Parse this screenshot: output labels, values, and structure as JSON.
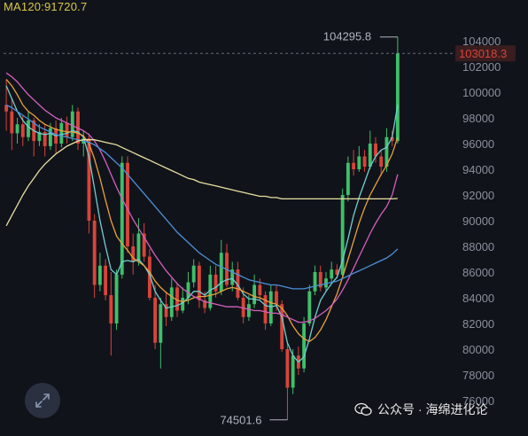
{
  "ma120_label": "MA120:91720.7",
  "watermark_text": "公众号 · 海绵进化论",
  "icons": {
    "expand": "expand-icon",
    "watermark": "wechat-icon"
  },
  "colors": {
    "background": "#11131a",
    "up": "#3fbf6a",
    "down": "#d8443a",
    "ma_yellow": "#d9c84a",
    "ma_cyan": "#6fd0d0",
    "ma_orange": "#e6a23c",
    "ma_magenta": "#d460c0",
    "ma_blue": "#4a90d9",
    "ma_pale_yellow": "#e8e0a0",
    "last_price": "#d8443a"
  },
  "chart_data": {
    "type": "candlestick",
    "ylim": [
      75000,
      106000
    ],
    "y_ticks": [
      76000,
      78000,
      80000,
      82000,
      84000,
      86000,
      88000,
      90000,
      92000,
      94000,
      96000,
      98000,
      100000,
      102000,
      104000
    ],
    "tick_labels": [
      "76000",
      "78000",
      "80000",
      "82000",
      "84000",
      "86000",
      "88000",
      "90000",
      "92000",
      "94000",
      "96000",
      "98000",
      "100000",
      "102000",
      "104000"
    ],
    "high_label": "104295.8",
    "low_label": "74501.6",
    "last_price": 103018.3,
    "last_price_label": "103018.3",
    "ma120_value": 91720.7,
    "candles": [
      [
        99000,
        98500,
        101000,
        97000
      ],
      [
        98500,
        96800,
        99500,
        95500
      ],
      [
        96800,
        97500,
        98000,
        96000
      ],
      [
        97500,
        96500,
        98200,
        95800
      ],
      [
        96500,
        97800,
        98500,
        96200
      ],
      [
        97800,
        96200,
        98000,
        95000
      ],
      [
        96200,
        96900,
        97500,
        95800
      ],
      [
        96900,
        95800,
        97500,
        95000
      ],
      [
        95800,
        97200,
        97600,
        95500
      ],
      [
        97200,
        96000,
        97800,
        95200
      ],
      [
        96000,
        97600,
        98000,
        95700
      ],
      [
        97600,
        96500,
        98100,
        96000
      ],
      [
        96500,
        98500,
        99000,
        96200
      ],
      [
        98500,
        96000,
        98800,
        95500
      ],
      [
        96000,
        96400,
        97000,
        95000
      ],
      [
        96400,
        90000,
        96800,
        89000
      ],
      [
        90000,
        85000,
        90500,
        84000
      ],
      [
        85000,
        86500,
        87500,
        84500
      ],
      [
        86500,
        84200,
        87000,
        83800
      ],
      [
        84200,
        82000,
        86000,
        79500
      ],
      [
        82000,
        85800,
        86200,
        81500
      ],
      [
        85800,
        94500,
        95000,
        85500
      ],
      [
        94500,
        88000,
        95000,
        87500
      ],
      [
        88000,
        86800,
        89000,
        85800
      ],
      [
        86800,
        89000,
        90200,
        86500
      ],
      [
        89000,
        87200,
        89800,
        86800
      ],
      [
        87200,
        84000,
        87800,
        83800
      ],
      [
        84000,
        80500,
        85000,
        80000
      ],
      [
        80500,
        83500,
        84000,
        78500
      ],
      [
        83500,
        82500,
        84500,
        81800
      ],
      [
        82500,
        84800,
        85500,
        82200
      ],
      [
        84800,
        83000,
        85200,
        82500
      ],
      [
        83000,
        84000,
        84800,
        82800
      ],
      [
        84000,
        85200,
        86000,
        83500
      ],
      [
        85200,
        86500,
        87000,
        84800
      ],
      [
        86500,
        83800,
        86800,
        83200
      ],
      [
        83800,
        83200,
        84500,
        82800
      ],
      [
        83200,
        85800,
        86500,
        83000
      ],
      [
        85800,
        84500,
        86500,
        84000
      ],
      [
        84500,
        87500,
        88500,
        84200
      ],
      [
        87500,
        85000,
        88200,
        84800
      ],
      [
        85000,
        86200,
        86800,
        84500
      ],
      [
        86200,
        84000,
        86800,
        83800
      ],
      [
        84000,
        82500,
        84800,
        82000
      ],
      [
        82500,
        83500,
        84200,
        82200
      ],
      [
        83500,
        85000,
        85800,
        83200
      ],
      [
        85000,
        84200,
        85500,
        83800
      ],
      [
        84200,
        82000,
        84500,
        81500
      ],
      [
        82000,
        84500,
        85000,
        81800
      ],
      [
        84500,
        83500,
        85000,
        83000
      ],
      [
        83500,
        80000,
        83800,
        79800
      ],
      [
        80000,
        77000,
        80500,
        74501.6
      ],
      [
        77000,
        79500,
        80000,
        76500
      ],
      [
        79500,
        78500,
        80200,
        78000
      ],
      [
        78500,
        82000,
        82500,
        78200
      ],
      [
        82000,
        84500,
        85000,
        81800
      ],
      [
        84500,
        86000,
        86500,
        84200
      ],
      [
        86000,
        84800,
        86500,
        84500
      ],
      [
        84800,
        85500,
        86000,
        84500
      ],
      [
        85500,
        86200,
        86800,
        85200
      ],
      [
        86200,
        85800,
        86600,
        85500
      ],
      [
        85800,
        92000,
        92500,
        85600
      ],
      [
        92000,
        94500,
        95000,
        91500
      ],
      [
        94500,
        94000,
        95500,
        93500
      ],
      [
        94000,
        95000,
        95800,
        93800
      ],
      [
        95000,
        94200,
        95500,
        93800
      ],
      [
        94200,
        96000,
        97000,
        94000
      ],
      [
        96000,
        95000,
        96500,
        94500
      ],
      [
        95000,
        94200,
        95500,
        93500
      ],
      [
        94200,
        96500,
        97200,
        93800
      ],
      [
        96500,
        96200,
        97000,
        95800
      ],
      [
        96200,
        103018.3,
        104295.8,
        96000
      ]
    ],
    "series": [
      {
        "values": [
          100500,
          99500,
          98500,
          97800,
          97300,
          97000,
          96800,
          96700,
          96800,
          96600,
          96700,
          96800,
          97000,
          96900,
          96500,
          95000,
          92500,
          90000,
          88000,
          86200,
          85800,
          86800,
          86900,
          86800,
          87000,
          86500,
          85800,
          84500,
          83800,
          83200,
          83300,
          83400,
          83600,
          84000,
          84500,
          84500,
          84200,
          84600,
          84800,
          85200,
          85400,
          85500,
          85000,
          84300,
          83900,
          83900,
          83800,
          83400,
          83300,
          83400,
          82500,
          80500,
          79500,
          79000,
          79400,
          80800,
          82500,
          83800,
          84500,
          85100,
          85600,
          86900,
          88600,
          90400,
          91800,
          93000,
          94200,
          95000,
          95500,
          95700,
          96500,
          99000
        ]
      },
      {
        "values": [
          101000,
          100500,
          99800,
          99000,
          98500,
          98200,
          97800,
          97500,
          97300,
          97100,
          97000,
          96900,
          96900,
          96800,
          96600,
          96000,
          94800,
          93300,
          91600,
          90000,
          88800,
          88200,
          87700,
          87100,
          86800,
          86500,
          86000,
          85300,
          84800,
          84400,
          84100,
          83800,
          83700,
          83800,
          84000,
          84100,
          84100,
          84200,
          84300,
          84500,
          84700,
          84800,
          84700,
          84500,
          84300,
          84100,
          84000,
          83800,
          83600,
          83500,
          83200,
          82600,
          81800,
          81200,
          80800,
          80600,
          80900,
          81500,
          82300,
          83300,
          84300,
          85600,
          87000,
          88400,
          89800,
          91000,
          92000,
          92800,
          93600,
          94300,
          95200,
          96500
        ]
      },
      {
        "values": [
          101500,
          101200,
          100800,
          100300,
          99800,
          99400,
          99000,
          98600,
          98300,
          98000,
          97800,
          97600,
          97400,
          97200,
          97000,
          96700,
          96200,
          95500,
          94600,
          93600,
          92600,
          91700,
          90900,
          90100,
          89400,
          88700,
          88000,
          87300,
          86700,
          86100,
          85600,
          85100,
          84700,
          84400,
          84100,
          83900,
          83700,
          83600,
          83500,
          83400,
          83300,
          83300,
          83300,
          83200,
          83100,
          83000,
          83000,
          82900,
          82800,
          82800,
          82700,
          82500,
          82300,
          82100,
          82100,
          82200,
          82400,
          82700,
          83000,
          83400,
          83900,
          84600,
          85400,
          86300,
          87200,
          88100,
          89000,
          89800,
          90500,
          91100,
          92000,
          93600
        ]
      },
      {
        "values": [
          99000,
          98800,
          98500,
          98200,
          97900,
          97600,
          97300,
          97100,
          96900,
          96700,
          96600,
          96500,
          96400,
          96300,
          96200,
          96100,
          95900,
          95600,
          95300,
          94900,
          94500,
          94100,
          93600,
          93100,
          92600,
          92100,
          91600,
          91100,
          90600,
          90100,
          89600,
          89100,
          88700,
          88300,
          87900,
          87500,
          87200,
          86900,
          86600,
          86400,
          86200,
          86000,
          85800,
          85600,
          85400,
          85300,
          85200,
          85100,
          85000,
          85000,
          84900,
          84800,
          84700,
          84700,
          84700,
          84800,
          84900,
          85000,
          85100,
          85200,
          85300,
          85500,
          85700,
          85900,
          86100,
          86300,
          86500,
          86700,
          86900,
          87100,
          87400,
          87800
        ]
      },
      {
        "values": [
          89600,
          90400,
          91200,
          92000,
          92700,
          93300,
          93900,
          94400,
          94800,
          95200,
          95500,
          95800,
          96000,
          96200,
          96300,
          96300,
          96300,
          96200,
          96100,
          96000,
          95900,
          95700,
          95500,
          95300,
          95100,
          94900,
          94700,
          94500,
          94300,
          94100,
          93900,
          93700,
          93500,
          93300,
          93200,
          93000,
          92900,
          92800,
          92700,
          92600,
          92500,
          92400,
          92300,
          92200,
          92100,
          92000,
          91900,
          91900,
          91800,
          91800,
          91700,
          91700,
          91700,
          91700,
          91700,
          91700,
          91700,
          91700,
          91700,
          91700,
          91700,
          91700,
          91700,
          91700,
          91700,
          91700,
          91700,
          91700,
          91700,
          91700,
          91700,
          91720.7
        ]
      }
    ]
  }
}
